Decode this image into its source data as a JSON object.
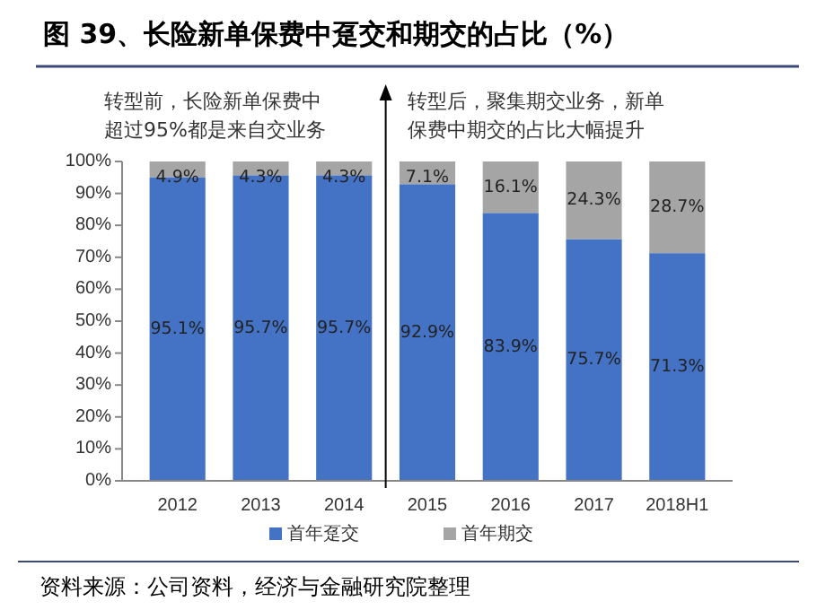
{
  "chart_data": {
    "type": "bar",
    "title": "图 39、长险新单保费中趸交和期交的占比（%）",
    "stacked": true,
    "categories": [
      "2012",
      "2013",
      "2014",
      "2015",
      "2016",
      "2017",
      "2018H1"
    ],
    "series": [
      {
        "name": "首年趸交",
        "color": "#4472c4",
        "values": [
          95.1,
          95.7,
          95.7,
          92.9,
          83.9,
          75.7,
          71.3
        ],
        "value_labels": [
          "95.1%",
          "95.7%",
          "95.7%",
          "92.9%",
          "83.9%",
          "75.7%",
          "71.3%"
        ]
      },
      {
        "name": "首年期交",
        "color": "#a5a5a5",
        "values": [
          4.9,
          4.3,
          4.3,
          7.1,
          16.1,
          24.3,
          28.7
        ],
        "value_labels": [
          "4.9%",
          "4.3%",
          "4.3%",
          "7.1%",
          "16.1%",
          "24.3%",
          "28.7%"
        ]
      }
    ],
    "ylim": [
      0,
      100
    ],
    "yticks": [
      {
        "value": 0,
        "label": "0%"
      },
      {
        "value": 10,
        "label": "10%"
      },
      {
        "value": 20,
        "label": "20%"
      },
      {
        "value": 30,
        "label": "30%"
      },
      {
        "value": 40,
        "label": "40%"
      },
      {
        "value": 50,
        "label": "50%"
      },
      {
        "value": 60,
        "label": "60%"
      },
      {
        "value": 70,
        "label": "70%"
      },
      {
        "value": 80,
        "label": "80%"
      },
      {
        "value": 90,
        "label": "90%"
      },
      {
        "value": 100,
        "label": "100%"
      }
    ],
    "grid": false,
    "legend": "bottom",
    "annotations": [
      "转型前，长险新单保费中超过95%都是来自交业务",
      "转型后，聚集期交业务，新单保费中期交的占比大幅提升",
      "资料来源：公司资料，经济与金融研究院整理"
    ]
  }
}
